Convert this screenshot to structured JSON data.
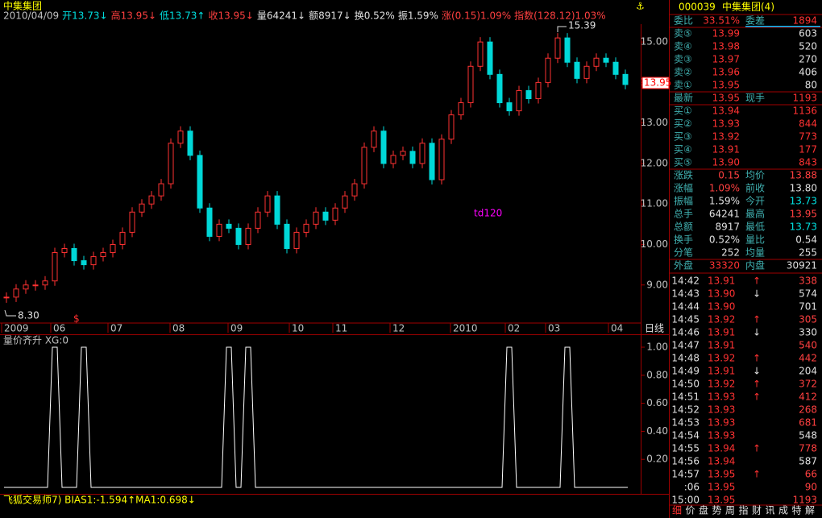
{
  "title": "中集集团",
  "info_items": [
    {
      "text": "2010/04/09",
      "color": "#c0c0c0"
    },
    {
      "text": "开13.73↓",
      "color": "#00e0e0"
    },
    {
      "text": "高13.95↓",
      "color": "#ff4040"
    },
    {
      "text": "低13.73↑",
      "color": "#00e0e0"
    },
    {
      "text": "收13.95↓",
      "color": "#ff4040"
    },
    {
      "text": "量64241↓",
      "color": "#e0e0e0"
    },
    {
      "text": "额8917↓",
      "color": "#e0e0e0"
    },
    {
      "text": "换0.52%",
      "color": "#e0e0e0"
    },
    {
      "text": "振1.59%",
      "color": "#e0e0e0"
    },
    {
      "text": "涨(0.15)1.09%",
      "color": "#ff4040"
    },
    {
      "text": "指数(128.12)1.03%",
      "color": "#ff4040"
    }
  ],
  "chart_data": {
    "type": "candlestick",
    "closes": [
      8.7,
      8.9,
      9.0,
      9.0,
      9.1,
      9.8,
      9.9,
      9.6,
      9.5,
      9.7,
      9.8,
      10.0,
      10.3,
      10.8,
      11.0,
      11.2,
      11.5,
      12.5,
      12.8,
      12.2,
      10.9,
      10.2,
      10.5,
      10.4,
      10.0,
      10.4,
      10.8,
      11.2,
      10.5,
      9.9,
      10.3,
      10.5,
      10.8,
      10.6,
      10.9,
      11.2,
      11.5,
      12.4,
      12.8,
      12.0,
      12.2,
      12.3,
      12.0,
      12.5,
      11.6,
      12.6,
      13.2,
      13.5,
      14.4,
      15.0,
      14.2,
      13.5,
      13.3,
      13.8,
      13.6,
      14.0,
      14.6,
      15.1,
      14.5,
      14.1,
      14.4,
      14.6,
      14.5,
      14.2,
      13.95
    ],
    "up_color": "#ff3232",
    "down_color": "#00d8d8",
    "ylim": [
      8.08,
      15.44
    ],
    "yticks": [
      {
        "value": 9,
        "label": "9.00"
      },
      {
        "value": 10,
        "label": "10.00"
      },
      {
        "value": 11,
        "label": "11.00"
      },
      {
        "value": 12,
        "label": "12.00"
      },
      {
        "value": 13,
        "label": "13.00"
      },
      {
        "value": 14,
        "label": "14.00"
      },
      {
        "value": 15,
        "label": "15.00"
      }
    ],
    "x_labels": [
      "2009",
      "06",
      "07",
      "08",
      "09",
      "10",
      "11",
      "12",
      "2010",
      "02",
      "03",
      "04"
    ],
    "period_label": "日线",
    "high_label": "15.39",
    "low_label": "8.30",
    "last_tag": "13.95",
    "annotation": "td120",
    "signal_mark": "$"
  },
  "indicator": {
    "title": "量价齐升 XG:0",
    "values": [
      0,
      0,
      0,
      0,
      0,
      1,
      0,
      0,
      1,
      0,
      0,
      0,
      0,
      0,
      0,
      0,
      0,
      0,
      0,
      0,
      0,
      0,
      0,
      1,
      0,
      1,
      0,
      0,
      0,
      0,
      0,
      0,
      0,
      0,
      0,
      0,
      0,
      0,
      0,
      0,
      0,
      0,
      0,
      0,
      0,
      0,
      0,
      0,
      0,
      0,
      0,
      0,
      1,
      0,
      0,
      0,
      0,
      0,
      1,
      0,
      0,
      0,
      0,
      0,
      0
    ],
    "ylim": [
      0,
      1
    ],
    "yticks": [
      {
        "value": 0.2,
        "label": "0.20"
      },
      {
        "value": 0.4,
        "label": "0.40"
      },
      {
        "value": 0.6,
        "label": "0.60"
      },
      {
        "value": 0.8,
        "label": "0.80"
      },
      {
        "value": 1,
        "label": "1.00"
      }
    ],
    "status": "飞狐交易师7) BIAS1:-1.594↑MA1:0.698↓"
  },
  "quote": {
    "code": "000039",
    "name": "中集集团(4)",
    "weibi": {
      "k1": "委比",
      "v1": "33.51%",
      "k2": "委差",
      "v2": "1894"
    },
    "asks": [
      {
        "label": "卖⑤",
        "price": "13.99",
        "vol": "603"
      },
      {
        "label": "卖④",
        "price": "13.98",
        "vol": "520"
      },
      {
        "label": "卖③",
        "price": "13.97",
        "vol": "270"
      },
      {
        "label": "卖②",
        "price": "13.96",
        "vol": "406"
      },
      {
        "label": "卖①",
        "price": "13.95",
        "vol": "80"
      }
    ],
    "last": {
      "k1": "最新",
      "v1": "13.95",
      "k2": "现手",
      "v2": "1193"
    },
    "bids": [
      {
        "label": "买①",
        "price": "13.94",
        "vol": "1136"
      },
      {
        "label": "买②",
        "price": "13.93",
        "vol": "844"
      },
      {
        "label": "买③",
        "price": "13.92",
        "vol": "773"
      },
      {
        "label": "买④",
        "price": "13.91",
        "vol": "177"
      },
      {
        "label": "买⑤",
        "price": "13.90",
        "vol": "843"
      }
    ],
    "stats": [
      {
        "k1": "涨跌",
        "v1": "0.15",
        "c1": "#ff4040",
        "k2": "均价",
        "v2": "13.88",
        "c2": "#ff4040"
      },
      {
        "k1": "涨幅",
        "v1": "1.09%",
        "c1": "#ff4040",
        "k2": "前收",
        "v2": "13.80",
        "c2": "#e0e0e0"
      },
      {
        "k1": "振幅",
        "v1": "1.59%",
        "c1": "#e0e0e0",
        "k2": "今开",
        "v2": "13.73",
        "c2": "#00e0e0"
      },
      {
        "k1": "总手",
        "v1": "64241",
        "c1": "#e0e0e0",
        "k2": "最高",
        "v2": "13.95",
        "c2": "#ff4040"
      },
      {
        "k1": "总额",
        "v1": "8917",
        "c1": "#e0e0e0",
        "k2": "最低",
        "v2": "13.73",
        "c2": "#00e0e0"
      },
      {
        "k1": "换手",
        "v1": "0.52%",
        "c1": "#e0e0e0",
        "k2": "量比",
        "v2": "0.54",
        "c2": "#e0e0e0"
      },
      {
        "k1": "分笔",
        "v1": "252",
        "c1": "#e0e0e0",
        "k2": "均量",
        "v2": "255",
        "c2": "#e0e0e0"
      }
    ],
    "outer": {
      "k1": "外盘",
      "v1": "33320",
      "k2": "内盘",
      "v2": "30921"
    },
    "ticks": [
      {
        "time": "14:42",
        "price": "13.91",
        "arrow": "↑",
        "vol": "338",
        "color": "#ff4040"
      },
      {
        "time": "14:43",
        "price": "13.90",
        "arrow": "↓",
        "vol": "574",
        "color": "#e0e0e0"
      },
      {
        "time": "14:44",
        "price": "13.90",
        "vol": "701",
        "color": "#e0e0e0"
      },
      {
        "time": "14:45",
        "price": "13.92",
        "arrow": "↑",
        "vol": "305",
        "color": "#ff4040"
      },
      {
        "time": "14:46",
        "price": "13.91",
        "arrow": "↓",
        "vol": "330",
        "color": "#e0e0e0"
      },
      {
        "time": "14:47",
        "price": "13.91",
        "vol": "540",
        "color": "#ff4040"
      },
      {
        "time": "14:48",
        "price": "13.92",
        "arrow": "↑",
        "vol": "442",
        "color": "#ff4040"
      },
      {
        "time": "14:49",
        "price": "13.91",
        "arrow": "↓",
        "vol": "204",
        "color": "#e0e0e0"
      },
      {
        "time": "14:50",
        "price": "13.92",
        "arrow": "↑",
        "vol": "372",
        "color": "#ff4040"
      },
      {
        "time": "14:51",
        "price": "13.93",
        "arrow": "↑",
        "vol": "412",
        "color": "#ff4040"
      },
      {
        "time": "14:52",
        "price": "13.93",
        "vol": "268",
        "color": "#ff4040"
      },
      {
        "time": "14:53",
        "price": "13.93",
        "vol": "681",
        "color": "#ff4040"
      },
      {
        "time": "14:54",
        "price": "13.93",
        "vol": "548",
        "color": "#e0e0e0"
      },
      {
        "time": "14:55",
        "price": "13.94",
        "arrow": "↑",
        "vol": "778",
        "color": "#ff4040"
      },
      {
        "time": "14:56",
        "price": "13.94",
        "vol": "587",
        "color": "#e0e0e0"
      },
      {
        "time": "14:57",
        "price": "13.95",
        "arrow": "↑",
        "vol": "66",
        "color": "#ff4040"
      },
      {
        "time": ":06",
        "price": "13.95",
        "vol": "90",
        "color": "#ff4040"
      },
      {
        "time": "15:00",
        "price": "13.95",
        "vol": "1193",
        "color": "#ff4040"
      }
    ],
    "tabs": [
      "细",
      "价",
      "盘",
      "势",
      "周",
      "指",
      "财",
      "讯",
      "成",
      "特",
      "解"
    ]
  }
}
